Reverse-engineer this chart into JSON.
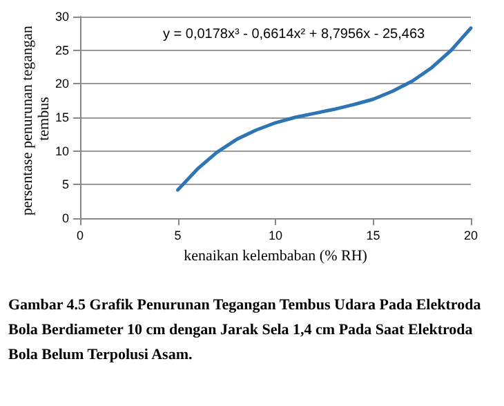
{
  "chart_data": {
    "type": "line",
    "xlabel": "kenaikan kelembaban (% RH)",
    "ylabel": "persentase penurunan tegangan tembus",
    "x": [
      5,
      6,
      7,
      8,
      9,
      10,
      11,
      12,
      13,
      14,
      15,
      16,
      17,
      18,
      19,
      20
    ],
    "series": [
      {
        "color": "#2e75b6",
        "values": [
          4.2,
          7.3,
          9.8,
          11.7,
          13.1,
          14.2,
          15.0,
          15.6,
          16.2,
          16.9,
          17.7,
          18.9,
          20.4,
          22.4,
          25.0,
          28.3
        ]
      }
    ],
    "xlim": [
      0,
      20
    ],
    "xticks": [
      0,
      5,
      10,
      15,
      20
    ],
    "ylim": [
      0,
      30
    ],
    "yticks": [
      0,
      5,
      10,
      15,
      20,
      25,
      30
    ],
    "grid": "y",
    "marker": "none",
    "line_style": "solid",
    "annotations": [
      "y = 0,0178x³ - 0,6614x² + 8,7956x - 25,463",
      "Gambar 4.5 Grafik Penurunan Tegangan Tembus Udara Pada Elektroda Bola Berdiameter 10 cm dengan Jarak Sela 1,4 cm Pada Saat Elektroda Bola Belum Terpolusi Asam."
    ]
  }
}
